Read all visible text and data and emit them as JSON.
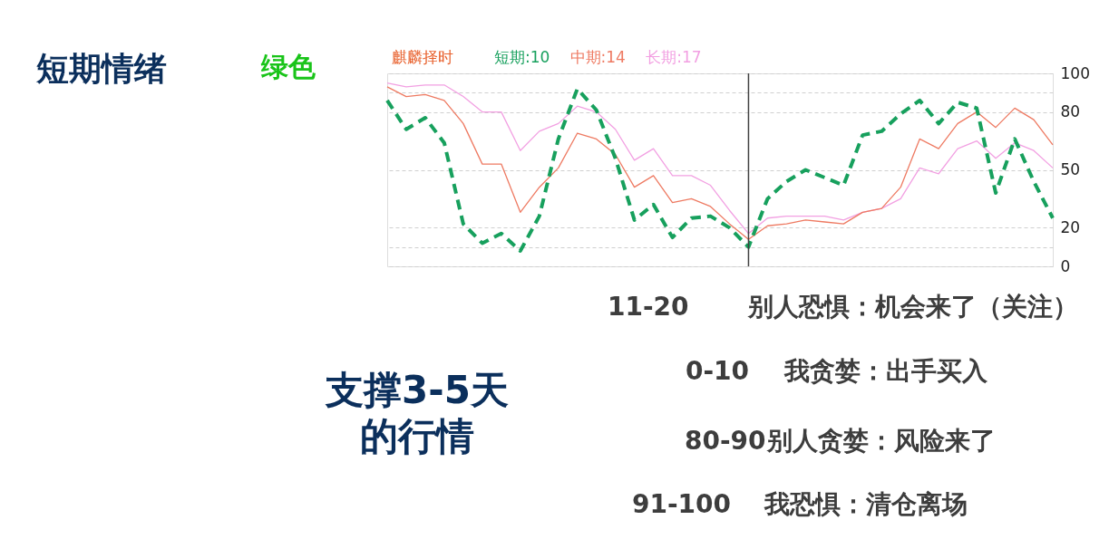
{
  "chart_data": [
    {
      "type": "other",
      "title": "短期情绪",
      "subtitle": "绿色"
    },
    {
      "type": "line",
      "title": "麒麟择时",
      "legend": "top left",
      "grid": "y",
      "tick_labels": "y",
      "categories": [
        null,
        null,
        null,
        null,
        null,
        null,
        null,
        null,
        null,
        null,
        null,
        null,
        null,
        null,
        null,
        null,
        null,
        null,
        null,
        null,
        null,
        null,
        null,
        null,
        null,
        null,
        null,
        null,
        null,
        null,
        null,
        null,
        null,
        null,
        null,
        null
      ],
      "ylim": [
        0,
        100
      ],
      "yticks": [
        0,
        {
          "value": 10,
          "label": null
        },
        20,
        50,
        80,
        {
          "value": 90,
          "label": null
        },
        100
      ],
      "series": [
        {
          "name": "短期:10",
          "color": "#17a05d",
          "line_style": "dashed",
          "values": [
            86,
            71,
            77,
            64,
            22,
            12,
            17,
            8,
            26,
            66,
            92,
            81,
            56,
            24,
            32,
            15,
            25,
            26,
            20,
            10,
            35,
            44,
            50,
            46,
            42,
            68,
            70,
            79,
            86,
            74,
            85,
            82,
            38,
            66,
            44,
            25
          ]
        },
        {
          "name": "中期:14",
          "color": "#ee7a62",
          "line_style": "solid",
          "values": [
            93,
            88,
            89,
            86,
            74,
            53,
            53,
            28,
            41,
            51,
            69,
            66,
            58,
            41,
            47,
            33,
            35,
            31,
            22,
            14,
            21,
            22,
            24,
            23,
            22,
            28,
            30,
            41,
            66,
            61,
            74,
            80,
            72,
            82,
            76,
            63
          ]
        },
        {
          "name": "长期:17",
          "color": "#f2a0e2",
          "line_style": "solid",
          "values": [
            95,
            93,
            94,
            94,
            88,
            80,
            80,
            60,
            70,
            74,
            83,
            80,
            71,
            55,
            61,
            47,
            47,
            42,
            29,
            17,
            25,
            26,
            26,
            26,
            24,
            28,
            30,
            35,
            51,
            48,
            61,
            65,
            56,
            64,
            60,
            51
          ]
        }
      ]
    },
    {
      "type": "other",
      "annotations": [
        "支撑3-5天",
        "的行情"
      ]
    },
    {
      "type": "other",
      "annotations": [
        "11-20",
        "别人恐惧：机会来了（关注）",
        "0-10",
        "我贪婪：出手买入",
        "80-90",
        "别人贪婪：风险来了",
        "91-100",
        "我恐惧：清仓离场"
      ]
    }
  ]
}
